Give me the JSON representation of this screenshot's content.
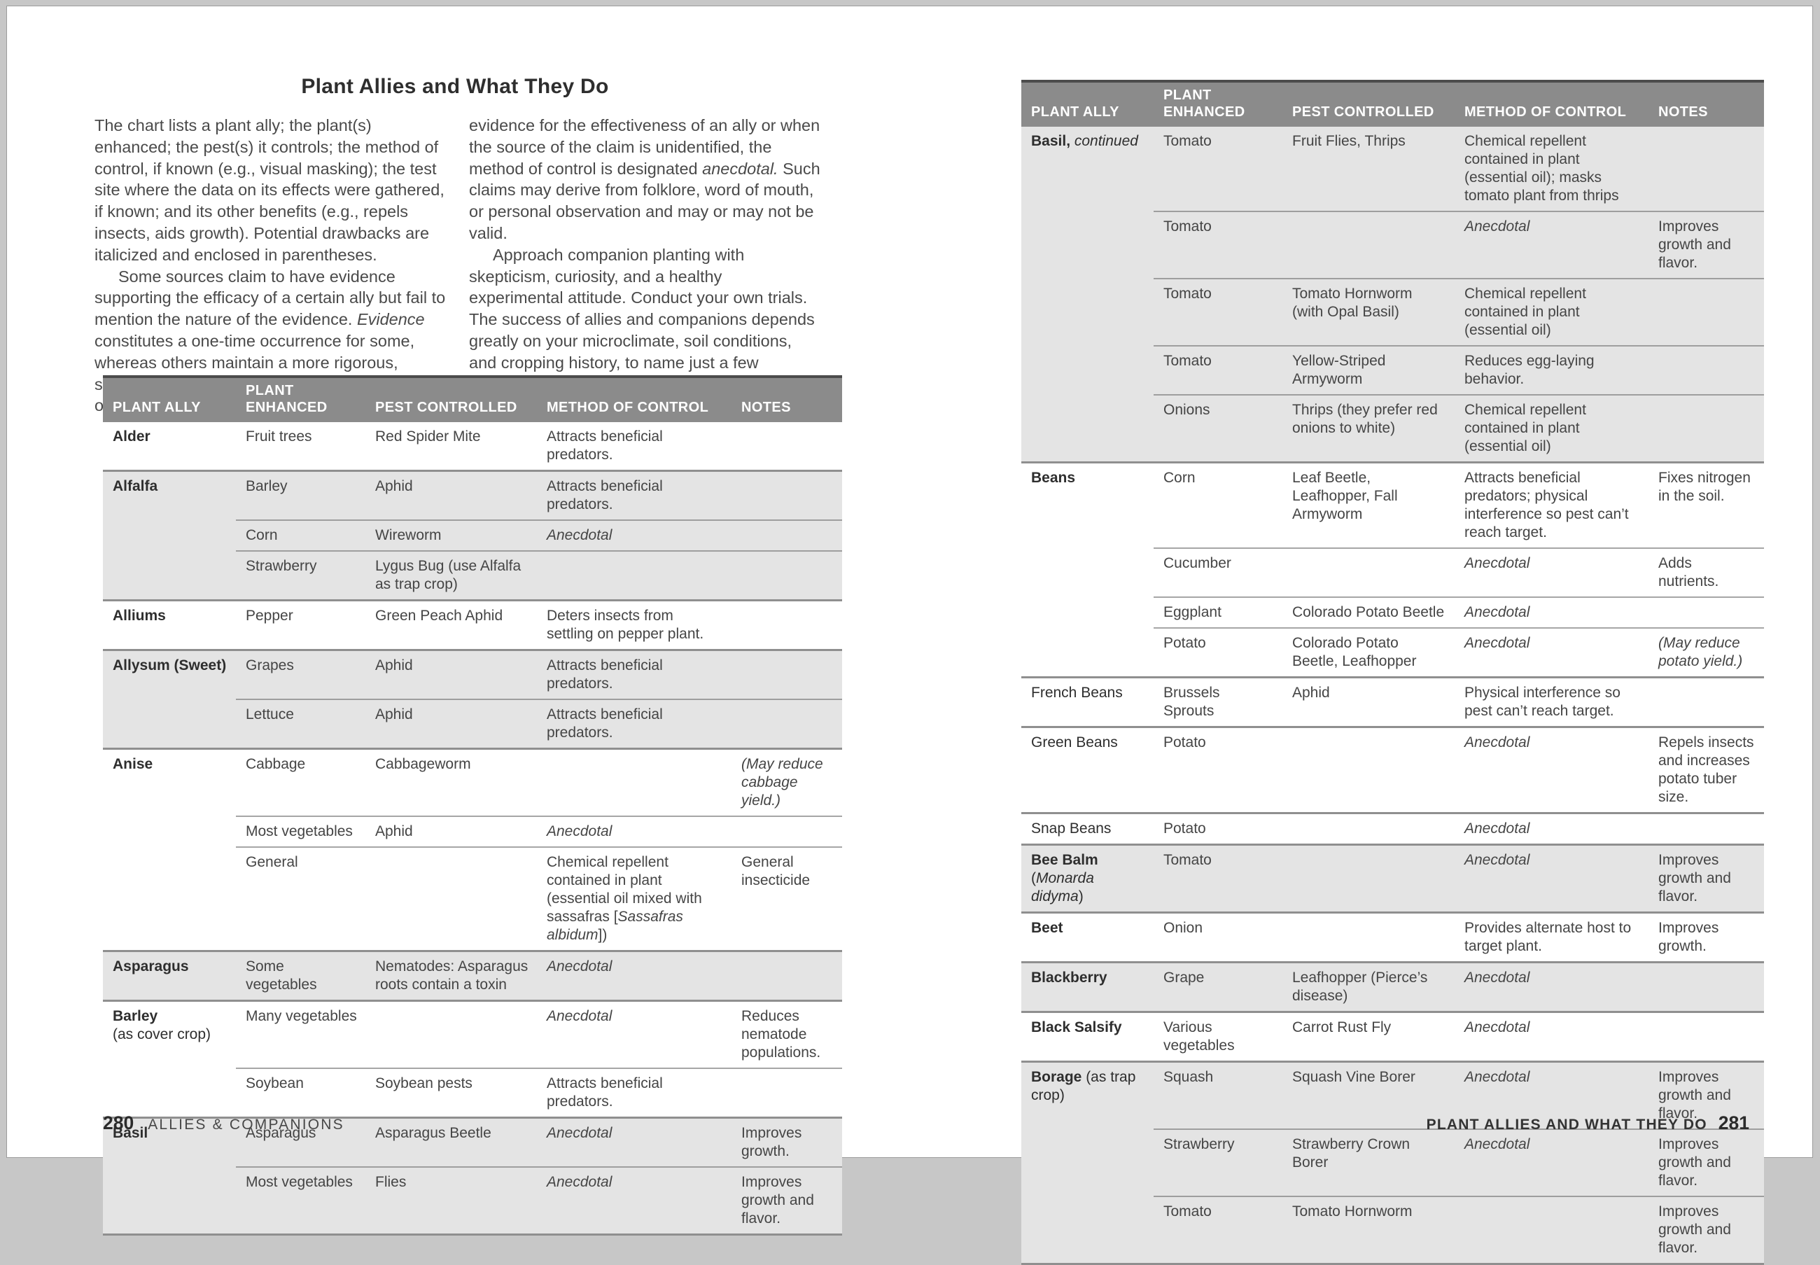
{
  "page": {
    "title": "Plant Allies and What They Do"
  },
  "colors": {
    "header_bg": "#8b8b8b",
    "header_text": "#ffffff",
    "stripe_bg": "#e4e4e4",
    "rule_dark": "#4c4c4c",
    "rule_gray": "#8f8f8f",
    "frame_bg": "#c7c7c7",
    "body_text": "#454545"
  },
  "columns": [
    "PLANT ALLY",
    "PLANT ENHANCED",
    "PEST CONTROLLED",
    "METHOD OF CONTROL",
    "NOTES"
  ],
  "intro": {
    "col1": [
      {
        "indent": false,
        "segs": [
          {
            "t": "The chart lists a plant ally; the plant(s) enhanced; the pest(s) it controls; the method of control, if known (e.g., visual masking); the test site where the data on its effects were gathered, if known; and its other benefits (e.g., repels insects, aids growth). Potential drawbacks are italicized and enclosed in parentheses."
          }
        ]
      },
      {
        "indent": true,
        "segs": [
          {
            "t": "Some sources claim to have evidence supporting the efficacy of a certain ally but fail to mention the nature of the evidence. "
          },
          {
            "t": "Evidence",
            "i": true
          },
          {
            "t": " constitutes a one-time occurrence for some, whereas others maintain a more rigorous, scientific standard, requiring multiple occurrences. When there is no clear scientific"
          }
        ]
      }
    ],
    "col2": [
      {
        "indent": false,
        "segs": [
          {
            "t": "evidence for the effectiveness of an ally or when the source of the claim is unidentified, the method of control is designated "
          },
          {
            "t": "anecdotal.",
            "i": true
          },
          {
            "t": " Such claims may derive from folklore, word of mouth, or personal observation and may or may not be valid."
          }
        ]
      },
      {
        "indent": true,
        "segs": [
          {
            "t": "Approach companion planting with skepticism, curiosity, and a healthy experimental attitude. Conduct your own trials. The success of allies and companions depends greatly on your microclimate, soil conditions, and cropping history, to name just a few variables."
          }
        ]
      }
    ]
  },
  "left_table": {
    "groups": [
      {
        "shade": "white",
        "ally": [
          {
            "t": "Alder",
            "b": true
          }
        ],
        "rows": [
          {
            "e": [
              {
                "t": "Fruit trees"
              }
            ],
            "p": [
              {
                "t": "Red Spider Mite"
              }
            ],
            "m": [
              {
                "t": "Attracts beneficial predators."
              }
            ]
          }
        ]
      },
      {
        "shade": "gray",
        "ally": [
          {
            "t": "Alfalfa",
            "b": true
          }
        ],
        "rows": [
          {
            "e": [
              {
                "t": "Barley"
              }
            ],
            "p": [
              {
                "t": "Aphid"
              }
            ],
            "m": [
              {
                "t": "Attracts beneficial predators."
              }
            ]
          },
          {
            "e": [
              {
                "t": "Corn"
              }
            ],
            "p": [
              {
                "t": "Wireworm"
              }
            ],
            "m": [
              {
                "t": "Anecdotal",
                "i": true
              }
            ]
          },
          {
            "e": [
              {
                "t": "Strawberry"
              }
            ],
            "p": [
              {
                "t": "Lygus Bug (use Alfalfa as trap crop)"
              }
            ]
          }
        ]
      },
      {
        "shade": "white",
        "ally": [
          {
            "t": "Alliums",
            "b": true
          }
        ],
        "rows": [
          {
            "e": [
              {
                "t": "Pepper"
              }
            ],
            "p": [
              {
                "t": "Green Peach Aphid"
              }
            ],
            "m": [
              {
                "t": "Deters insects from settling on pepper plant."
              }
            ]
          }
        ]
      },
      {
        "shade": "gray",
        "ally": [
          {
            "t": "Allysum (Sweet)",
            "b": true
          }
        ],
        "rows": [
          {
            "e": [
              {
                "t": "Grapes"
              }
            ],
            "p": [
              {
                "t": "Aphid"
              }
            ],
            "m": [
              {
                "t": "Attracts beneficial predators."
              }
            ]
          },
          {
            "e": [
              {
                "t": "Lettuce"
              }
            ],
            "p": [
              {
                "t": "Aphid"
              }
            ],
            "m": [
              {
                "t": "Attracts beneficial predators."
              }
            ]
          }
        ]
      },
      {
        "shade": "white",
        "ally": [
          {
            "t": "Anise",
            "b": true
          }
        ],
        "rows": [
          {
            "e": [
              {
                "t": "Cabbage"
              }
            ],
            "p": [
              {
                "t": "Cabbageworm"
              }
            ],
            "n": [
              {
                "t": "(May reduce cabbage yield.)",
                "i": true
              }
            ]
          },
          {
            "e": [
              {
                "t": "Most vegetables"
              }
            ],
            "p": [
              {
                "t": "Aphid"
              }
            ],
            "m": [
              {
                "t": "Anecdotal",
                "i": true
              }
            ]
          },
          {
            "e": [
              {
                "t": "General"
              }
            ],
            "m": [
              {
                "t": "Chemical repellent contained in plant (essential oil mixed with sassafras ["
              },
              {
                "t": "Sassafras albidum",
                "i": true
              },
              {
                "t": "])"
              }
            ],
            "n": [
              {
                "t": "General insecticide"
              }
            ]
          }
        ]
      },
      {
        "shade": "gray",
        "ally": [
          {
            "t": "Asparagus",
            "b": true
          }
        ],
        "rows": [
          {
            "e": [
              {
                "t": "Some vegetables"
              }
            ],
            "p": [
              {
                "t": "Nematodes: Asparagus roots contain a toxin"
              }
            ],
            "m": [
              {
                "t": "Anecdotal",
                "i": true
              }
            ]
          }
        ]
      },
      {
        "shade": "white",
        "ally": [
          {
            "t": "Barley",
            "b": true
          },
          {
            "br": true
          },
          {
            "t": "(as cover crop)"
          }
        ],
        "rows": [
          {
            "e": [
              {
                "t": "Many vegetables"
              }
            ],
            "m": [
              {
                "t": "Anecdotal",
                "i": true
              }
            ],
            "n": [
              {
                "t": "Reduces nematode populations."
              }
            ]
          },
          {
            "e": [
              {
                "t": "Soybean"
              }
            ],
            "p": [
              {
                "t": "Soybean pests"
              }
            ],
            "m": [
              {
                "t": "Attracts beneficial predators."
              }
            ]
          }
        ]
      },
      {
        "shade": "gray",
        "ally": [
          {
            "t": "Basil",
            "b": true
          }
        ],
        "rows": [
          {
            "e": [
              {
                "t": "Asparagus"
              }
            ],
            "p": [
              {
                "t": "Asparagus Beetle"
              }
            ],
            "m": [
              {
                "t": "Anecdotal",
                "i": true
              }
            ],
            "n": [
              {
                "t": "Improves growth."
              }
            ]
          },
          {
            "e": [
              {
                "t": "Most vegetables"
              }
            ],
            "p": [
              {
                "t": "Flies"
              }
            ],
            "m": [
              {
                "t": "Anecdotal",
                "i": true
              }
            ],
            "n": [
              {
                "t": "Improves growth and flavor."
              }
            ]
          }
        ]
      }
    ]
  },
  "right_table": {
    "groups": [
      {
        "shade": "gray",
        "ally": [
          {
            "t": "Basil,",
            "b": true
          },
          {
            "t": " continued",
            "i": true
          }
        ],
        "rows": [
          {
            "e": [
              {
                "t": "Tomato"
              }
            ],
            "p": [
              {
                "t": "Fruit Flies, Thrips"
              }
            ],
            "m": [
              {
                "t": "Chemical repellent contained in plant (essential oil); masks tomato plant from thrips"
              }
            ]
          },
          {
            "e": [
              {
                "t": "Tomato"
              }
            ],
            "m": [
              {
                "t": "Anecdotal",
                "i": true
              }
            ],
            "n": [
              {
                "t": "Improves growth and flavor."
              }
            ]
          },
          {
            "e": [
              {
                "t": "Tomato"
              }
            ],
            "p": [
              {
                "t": "Tomato Hornworm (with Opal Basil)"
              }
            ],
            "m": [
              {
                "t": "Chemical repellent contained in plant (essential oil)"
              }
            ]
          },
          {
            "e": [
              {
                "t": "Tomato"
              }
            ],
            "p": [
              {
                "t": "Yellow-Striped Armyworm"
              }
            ],
            "m": [
              {
                "t": "Reduces egg-laying behavior."
              }
            ]
          },
          {
            "e": [
              {
                "t": "Onions"
              }
            ],
            "p": [
              {
                "t": "Thrips (they prefer red onions to white)"
              }
            ],
            "m": [
              {
                "t": "Chemical repellent contained in plant (essential oil)"
              }
            ]
          }
        ]
      },
      {
        "shade": "white",
        "ally": [
          {
            "t": "Beans",
            "b": true
          }
        ],
        "rows": [
          {
            "e": [
              {
                "t": "Corn"
              }
            ],
            "p": [
              {
                "t": "Leaf Beetle, Leafhopper, Fall Armyworm"
              }
            ],
            "m": [
              {
                "t": "Attracts beneficial predators; physical interference so pest can’t reach target."
              }
            ],
            "n": [
              {
                "t": "Fixes nitrogen in the soil."
              }
            ]
          },
          {
            "e": [
              {
                "t": "Cucumber"
              }
            ],
            "m": [
              {
                "t": "Anecdotal",
                "i": true
              }
            ],
            "n": [
              {
                "t": "Adds nutrients."
              }
            ]
          },
          {
            "e": [
              {
                "t": "Eggplant"
              }
            ],
            "p": [
              {
                "t": "Colorado Potato Beetle"
              }
            ],
            "m": [
              {
                "t": "Anecdotal",
                "i": true
              }
            ]
          },
          {
            "e": [
              {
                "t": "Potato"
              }
            ],
            "p": [
              {
                "t": "Colorado Potato Beetle, Leafhopper"
              }
            ],
            "m": [
              {
                "t": "Anecdotal",
                "i": true
              }
            ],
            "n": [
              {
                "t": "(May reduce potato yield.)",
                "i": true
              }
            ]
          }
        ]
      },
      {
        "shade": "white",
        "ally": [
          {
            "t": "French Beans"
          }
        ],
        "rows": [
          {
            "e": [
              {
                "t": "Brussels Sprouts"
              }
            ],
            "p": [
              {
                "t": "Aphid"
              }
            ],
            "m": [
              {
                "t": "Physical interference so pest can’t reach target."
              }
            ]
          }
        ]
      },
      {
        "shade": "white",
        "ally": [
          {
            "t": "Green Beans"
          }
        ],
        "rows": [
          {
            "e": [
              {
                "t": "Potato"
              }
            ],
            "m": [
              {
                "t": "Anecdotal",
                "i": true
              }
            ],
            "n": [
              {
                "t": "Repels insects and increases potato tuber size."
              }
            ]
          }
        ]
      },
      {
        "shade": "white",
        "ally": [
          {
            "t": "Snap Beans"
          }
        ],
        "rows": [
          {
            "e": [
              {
                "t": "Potato"
              }
            ],
            "m": [
              {
                "t": "Anecdotal",
                "i": true
              }
            ]
          }
        ]
      },
      {
        "shade": "gray",
        "ally": [
          {
            "t": "Bee Balm",
            "b": true
          },
          {
            "br": true
          },
          {
            "t": "("
          },
          {
            "t": "Monarda",
            "i": true
          },
          {
            "br": true
          },
          {
            "t": "didyma",
            "i": true
          },
          {
            "t": ")"
          }
        ],
        "rows": [
          {
            "e": [
              {
                "t": "Tomato"
              }
            ],
            "m": [
              {
                "t": "Anecdotal",
                "i": true
              }
            ],
            "n": [
              {
                "t": "Improves growth and flavor."
              }
            ]
          }
        ]
      },
      {
        "shade": "white",
        "ally": [
          {
            "t": "Beet",
            "b": true
          }
        ],
        "rows": [
          {
            "e": [
              {
                "t": "Onion"
              }
            ],
            "m": [
              {
                "t": "Provides alternate host to target plant."
              }
            ],
            "n": [
              {
                "t": "Improves growth."
              }
            ]
          }
        ]
      },
      {
        "shade": "gray",
        "ally": [
          {
            "t": "Blackberry",
            "b": true
          }
        ],
        "rows": [
          {
            "e": [
              {
                "t": "Grape"
              }
            ],
            "p": [
              {
                "t": "Leafhopper (Pierce’s disease)"
              }
            ],
            "m": [
              {
                "t": "Anecdotal",
                "i": true
              }
            ]
          }
        ]
      },
      {
        "shade": "white",
        "ally": [
          {
            "t": "Black Salsify",
            "b": true
          }
        ],
        "rows": [
          {
            "e": [
              {
                "t": "Various vegetables"
              }
            ],
            "p": [
              {
                "t": "Carrot Rust Fly"
              }
            ],
            "m": [
              {
                "t": "Anecdotal",
                "i": true
              }
            ]
          }
        ]
      },
      {
        "shade": "gray",
        "ally": [
          {
            "t": "Borage",
            "b": true
          },
          {
            "t": " (as trap crop)"
          }
        ],
        "rows": [
          {
            "e": [
              {
                "t": "Squash"
              }
            ],
            "p": [
              {
                "t": "Squash Vine Borer"
              }
            ],
            "m": [
              {
                "t": "Anecdotal",
                "i": true
              }
            ],
            "n": [
              {
                "t": "Improves growth and flavor."
              }
            ]
          },
          {
            "e": [
              {
                "t": "Strawberry"
              }
            ],
            "p": [
              {
                "t": "Strawberry Crown Borer"
              }
            ],
            "m": [
              {
                "t": "Anecdotal",
                "i": true
              }
            ],
            "n": [
              {
                "t": "Improves growth and flavor."
              }
            ]
          },
          {
            "e": [
              {
                "t": "Tomato"
              }
            ],
            "p": [
              {
                "t": "Tomato Hornworm"
              }
            ],
            "n": [
              {
                "t": "Improves growth and flavor."
              }
            ]
          }
        ]
      }
    ]
  },
  "footer": {
    "left": {
      "num": "280",
      "label": "ALLIES & COMPANIONS"
    },
    "right": {
      "label": "PLANT ALLIES AND WHAT THEY DO",
      "num": "281"
    }
  }
}
